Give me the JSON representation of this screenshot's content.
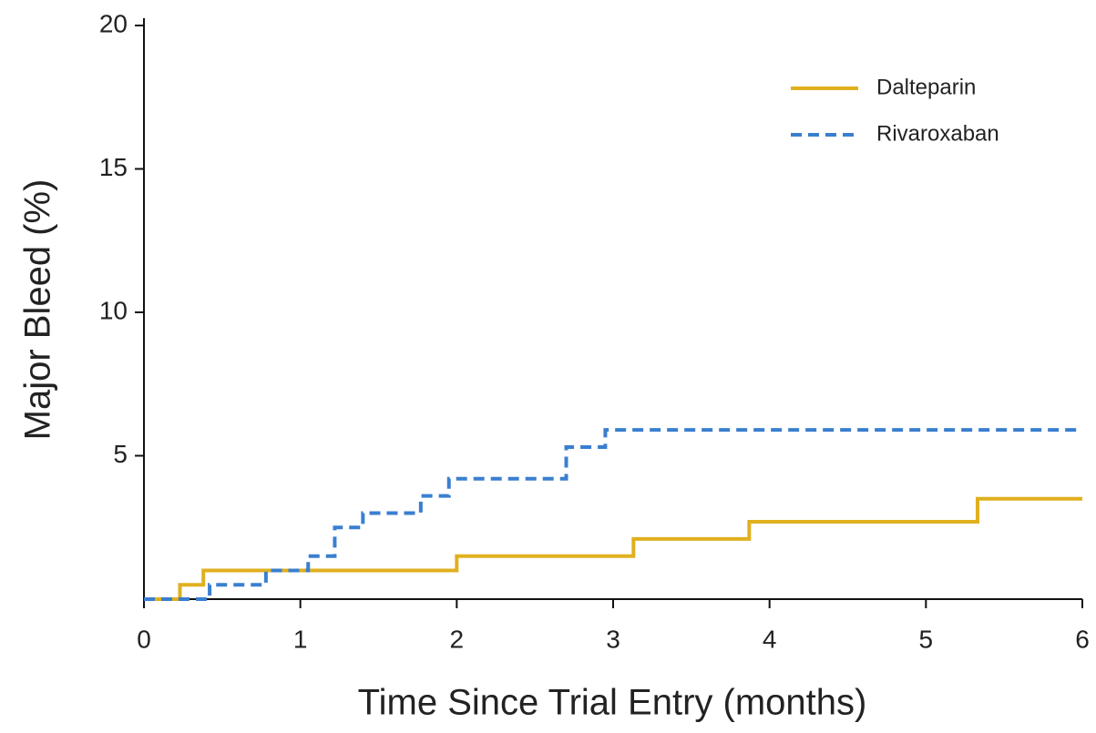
{
  "chart_data": {
    "type": "line",
    "drawstyle": "steps-post",
    "xlabel": "Time Since Trial Entry (months)",
    "ylabel": "Major Bleed (%)",
    "xlim": [
      0,
      6
    ],
    "xticks": [
      0,
      1,
      2,
      3,
      4,
      5,
      6
    ],
    "ylim": [
      0,
      20
    ],
    "yticks": [
      5,
      10,
      15,
      20
    ],
    "legend": "upper right",
    "series": [
      {
        "name": "Dalteparin",
        "color": "#e0b01e",
        "dash": "solid",
        "x": [
          0,
          0.23,
          0.38,
          2.0,
          3.13,
          3.87,
          5.33,
          6
        ],
        "values": [
          0,
          0.5,
          1.0,
          1.5,
          2.1,
          2.7,
          3.5,
          3.5
        ]
      },
      {
        "name": "Rivaroxaban",
        "color": "#3a7fd0",
        "dash": "dashed",
        "x": [
          0,
          0.42,
          0.78,
          1.05,
          1.22,
          1.4,
          1.77,
          1.95,
          2.7,
          2.95,
          6
        ],
        "values": [
          0,
          0.5,
          1.0,
          1.5,
          2.5,
          3.0,
          3.6,
          4.2,
          5.3,
          5.9,
          5.9
        ]
      }
    ]
  }
}
